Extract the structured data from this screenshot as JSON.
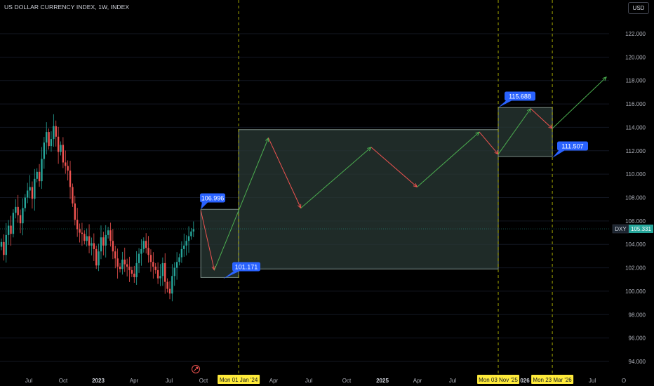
{
  "chart_title": "US DOLLAR CURRENCY INDEX, 1W, INDEX",
  "currency_button": "USD",
  "chart_data": {
    "type": "candlestick",
    "symbol": "DXY",
    "timeframe": "1W",
    "y_axis": {
      "range": [
        93.0,
        125.0
      ],
      "ticks": [
        "94.000",
        "96.000",
        "98.000",
        "100.000",
        "102.000",
        "104.000",
        "106.000",
        "108.000",
        "110.000",
        "112.000",
        "114.000",
        "116.000",
        "118.000",
        "120.000",
        "122.000"
      ]
    },
    "x_axis": {
      "ticks": [
        {
          "label": "Jul",
          "bold": false
        },
        {
          "label": "Oct",
          "bold": false
        },
        {
          "label": "2023",
          "bold": true
        },
        {
          "label": "Apr",
          "bold": false
        },
        {
          "label": "Jul",
          "bold": false
        },
        {
          "label": "Oct",
          "bold": false
        },
        {
          "label": "Apr",
          "bold": false
        },
        {
          "label": "Jul",
          "bold": false
        },
        {
          "label": "Oct",
          "bold": false
        },
        {
          "label": "2025",
          "bold": true
        },
        {
          "label": "Apr",
          "bold": false
        },
        {
          "label": "Jul",
          "bold": false
        },
        {
          "label": "Jul",
          "bold": false
        },
        {
          "label": "O",
          "bold": false
        }
      ],
      "date_markers": [
        "Mon 01 Jan '24",
        "Mon 03 Nov '25",
        "Mon 23 Mar '26"
      ],
      "partial_label": "026"
    },
    "last_price": {
      "symbol": "DXY",
      "value": "105.331"
    },
    "weekly_closes": [
      104.2,
      103.1,
      104.8,
      105.6,
      104.9,
      106.7,
      107.2,
      106.5,
      105.8,
      107.1,
      108.0,
      108.6,
      108.9,
      107.9,
      109.6,
      110.2,
      109.4,
      111.3,
      112.7,
      113.6,
      112.4,
      113.0,
      114.1,
      113.2,
      111.9,
      112.5,
      111.0,
      110.7,
      110.3,
      108.9,
      107.5,
      106.1,
      105.3,
      105.0,
      104.9,
      104.3,
      104.7,
      103.9,
      104.1,
      103.6,
      102.2,
      103.4,
      104.6,
      103.9,
      104.8,
      105.2,
      104.3,
      103.4,
      102.8,
      102.1,
      101.9,
      102.7,
      102.3,
      102.1,
      101.8,
      101.5,
      101.2,
      102.4,
      103.2,
      103.6,
      104.3,
      103.7,
      103.1,
      102.5,
      102.1,
      101.8,
      101.1,
      101.3,
      102.4,
      100.8,
      100.2,
      99.8,
      101.3,
      102.0,
      102.5,
      102.9,
      103.6,
      103.9,
      104.3,
      104.7,
      105.1,
      105.3
    ],
    "annotations": {
      "boxes": [
        {
          "name": "box-1",
          "start": "2023-09-25",
          "end": "2024-01-01",
          "low": 101.171,
          "high": 106.996
        },
        {
          "name": "box-2",
          "start": "2024-01-01",
          "end": "2025-11-03",
          "low": 101.9,
          "high": 113.8
        },
        {
          "name": "box-3",
          "start": "2025-11-03",
          "end": "2026-03-23",
          "low": 111.507,
          "high": 115.688
        }
      ],
      "price_labels": [
        "106.996",
        "101.171",
        "115.688",
        "111.507"
      ],
      "projection_path": [
        {
          "date": "2023-09-25",
          "price": 106.9
        },
        {
          "date": "2023-10-30",
          "price": 101.8
        },
        {
          "date": "2024-03-18",
          "price": 113.1
        },
        {
          "date": "2024-06-10",
          "price": 107.1
        },
        {
          "date": "2024-12-09",
          "price": 112.3
        },
        {
          "date": "2025-04-07",
          "price": 108.9
        },
        {
          "date": "2025-09-15",
          "price": 113.6
        },
        {
          "date": "2025-11-03",
          "price": 111.7
        },
        {
          "date": "2026-01-26",
          "price": 115.6
        },
        {
          "date": "2026-03-23",
          "price": 113.9
        },
        {
          "date": "2026-08-10",
          "price": 118.3
        }
      ]
    }
  },
  "colors": {
    "background": "#000000",
    "up_candle": "#26a69a",
    "down_candle": "#ef5350",
    "box_fill": "#2a3a36",
    "box_border": "#7a8c86",
    "label_blue": "#2962ff",
    "date_marker_bg": "#ffeb3b",
    "dashed_line": "#b5b800",
    "up_arrow": "#4caf50",
    "down_arrow": "#ef5350",
    "last_price_bg": "#26a69a"
  }
}
